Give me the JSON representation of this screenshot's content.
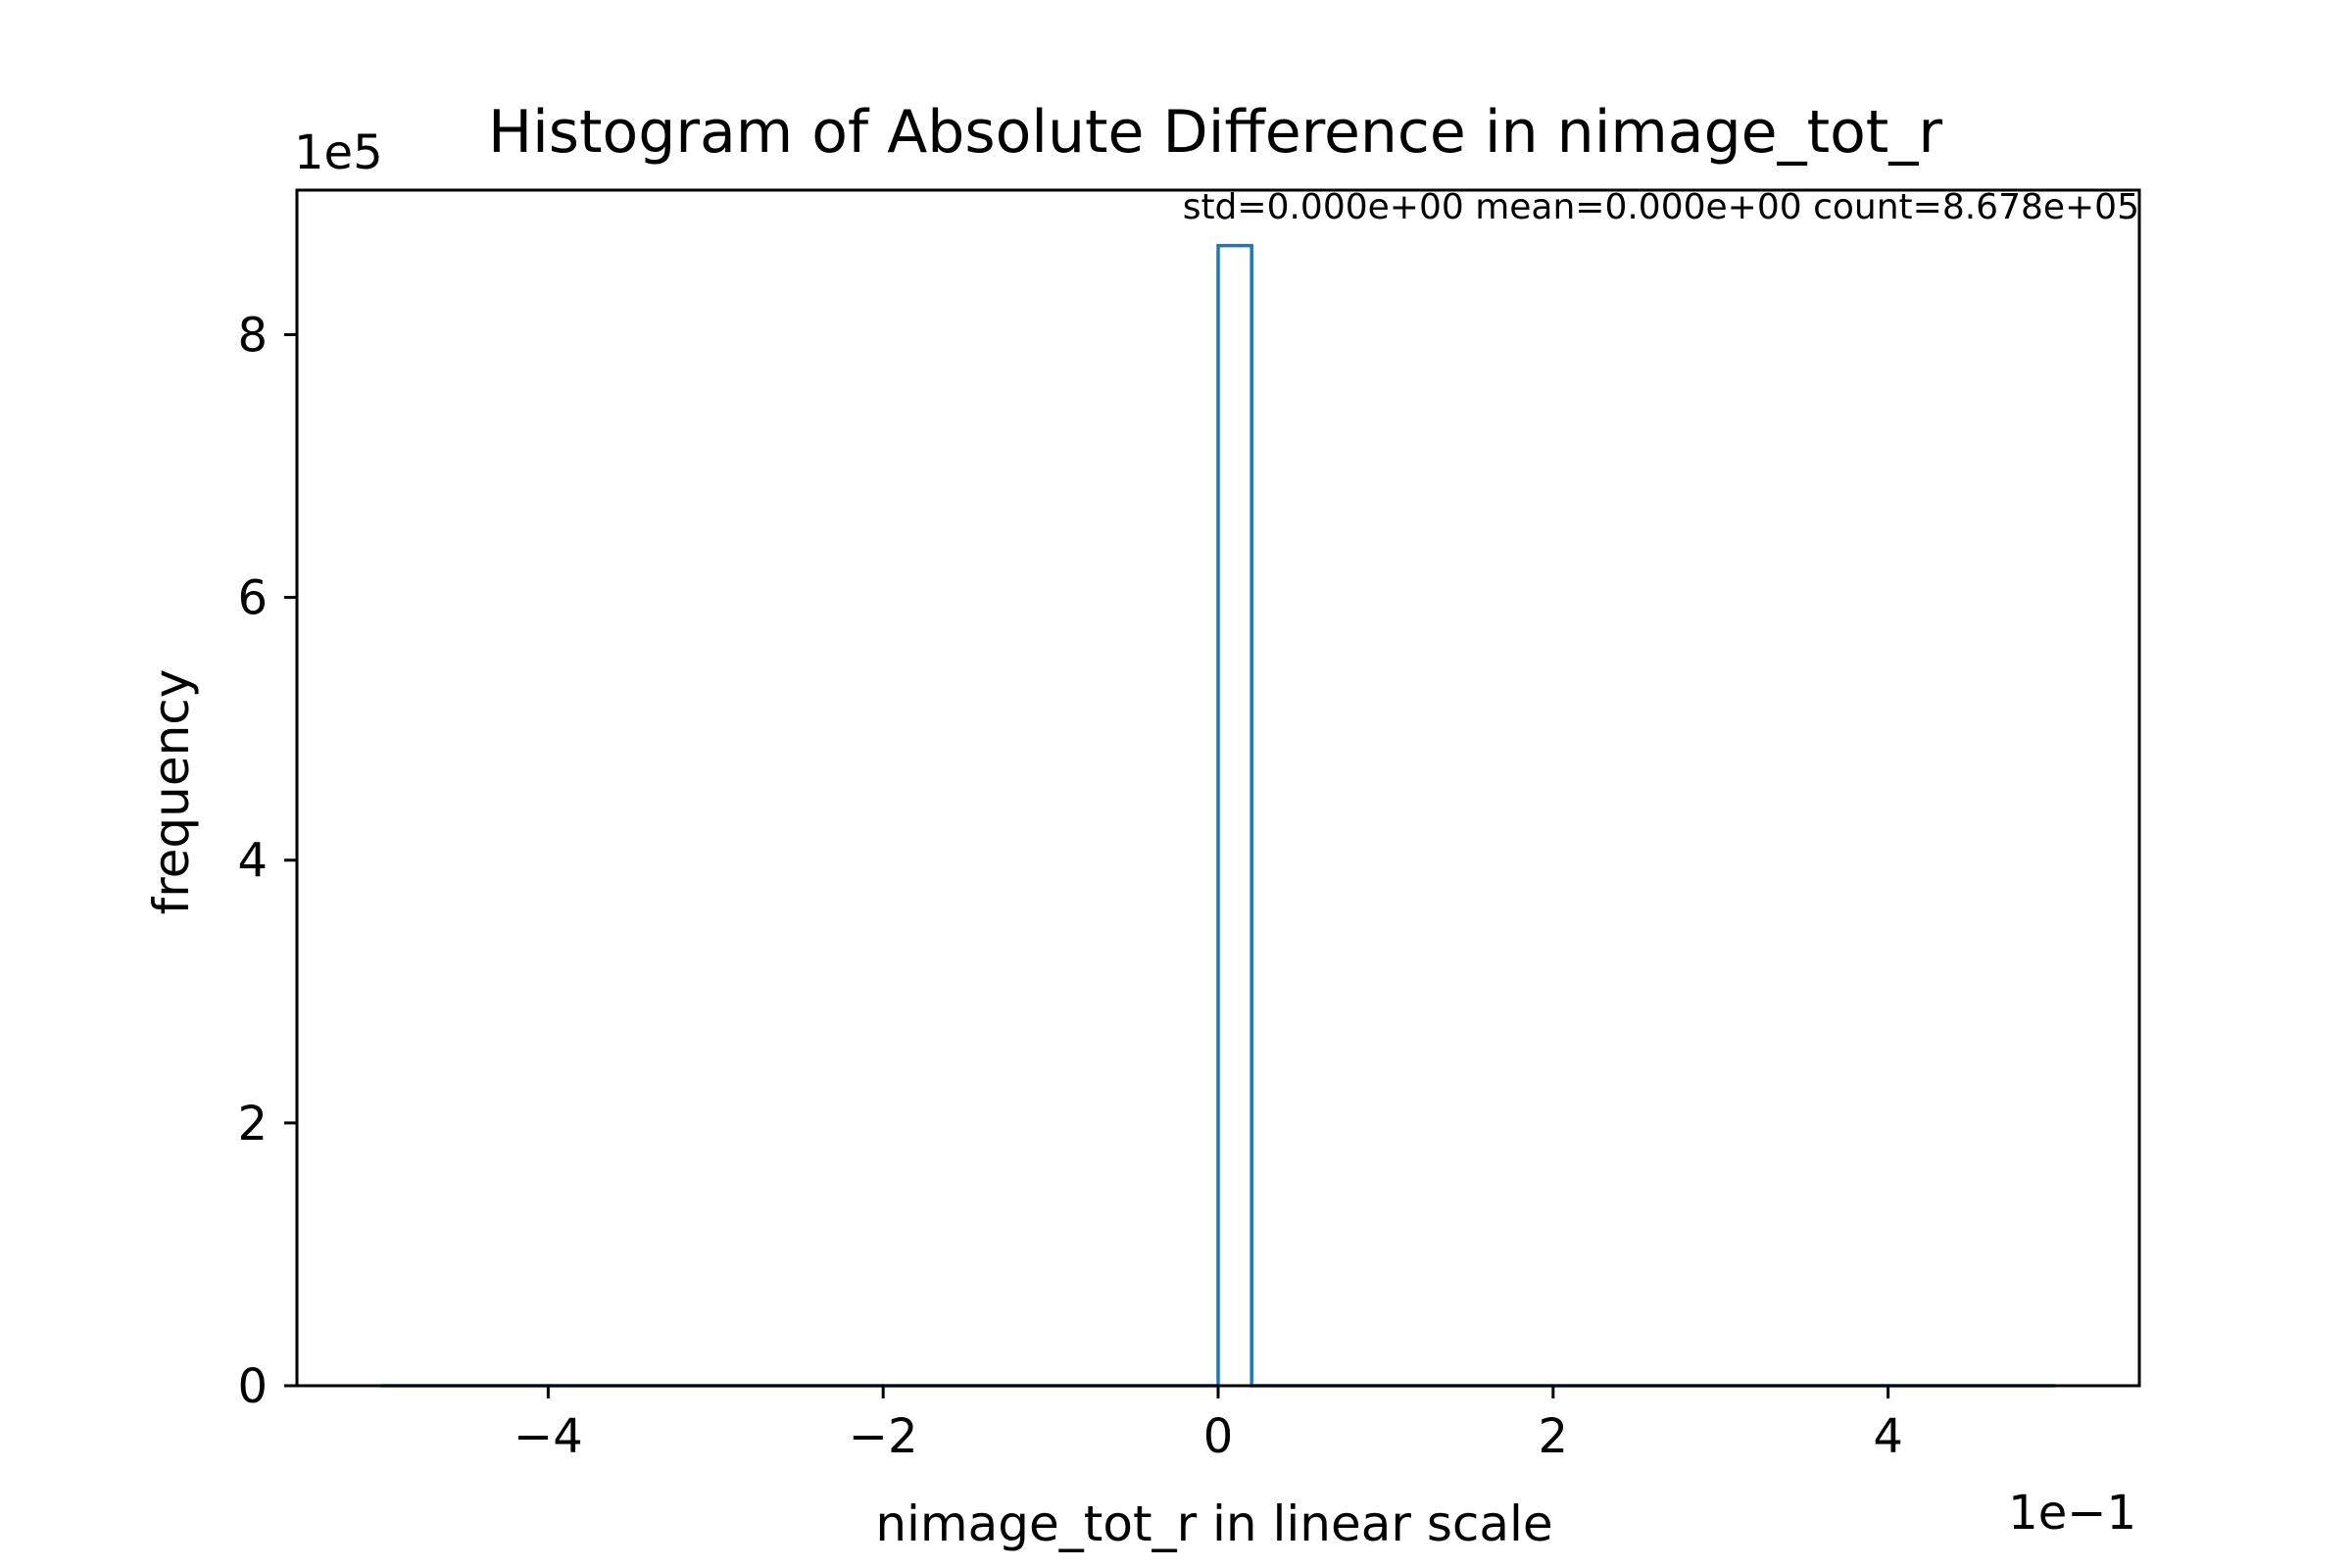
{
  "chart_data": {
    "type": "bar",
    "title": "Histogram of Absolute Difference in nimage_tot_r",
    "xlabel": "nimage_tot_r in linear scale",
    "ylabel": "frequency",
    "annotation": "std=0.000e+00 mean=0.000e+00 count=8.678e+05",
    "x_multiplier": "1e−1",
    "y_multiplier": "1e5",
    "xlim": [
      -5.5,
      5.5
    ],
    "ylim": [
      0,
      9.1
    ],
    "xticks": [
      -4,
      -2,
      0,
      2,
      4
    ],
    "xtick_labels": [
      "−4",
      "−2",
      "0",
      "2",
      "4"
    ],
    "yticks": [
      0,
      2,
      4,
      6,
      8
    ],
    "ytick_labels": [
      "0",
      "2",
      "4",
      "6",
      "8"
    ],
    "bins": {
      "range": [
        -5,
        5
      ],
      "width": 0.2,
      "counts_nonzero": [
        {
          "x_start": 0.0,
          "x_end": 0.2,
          "value": 8.678
        }
      ]
    },
    "histtype": "step",
    "grid": false,
    "series_color": "#1f77b4"
  }
}
